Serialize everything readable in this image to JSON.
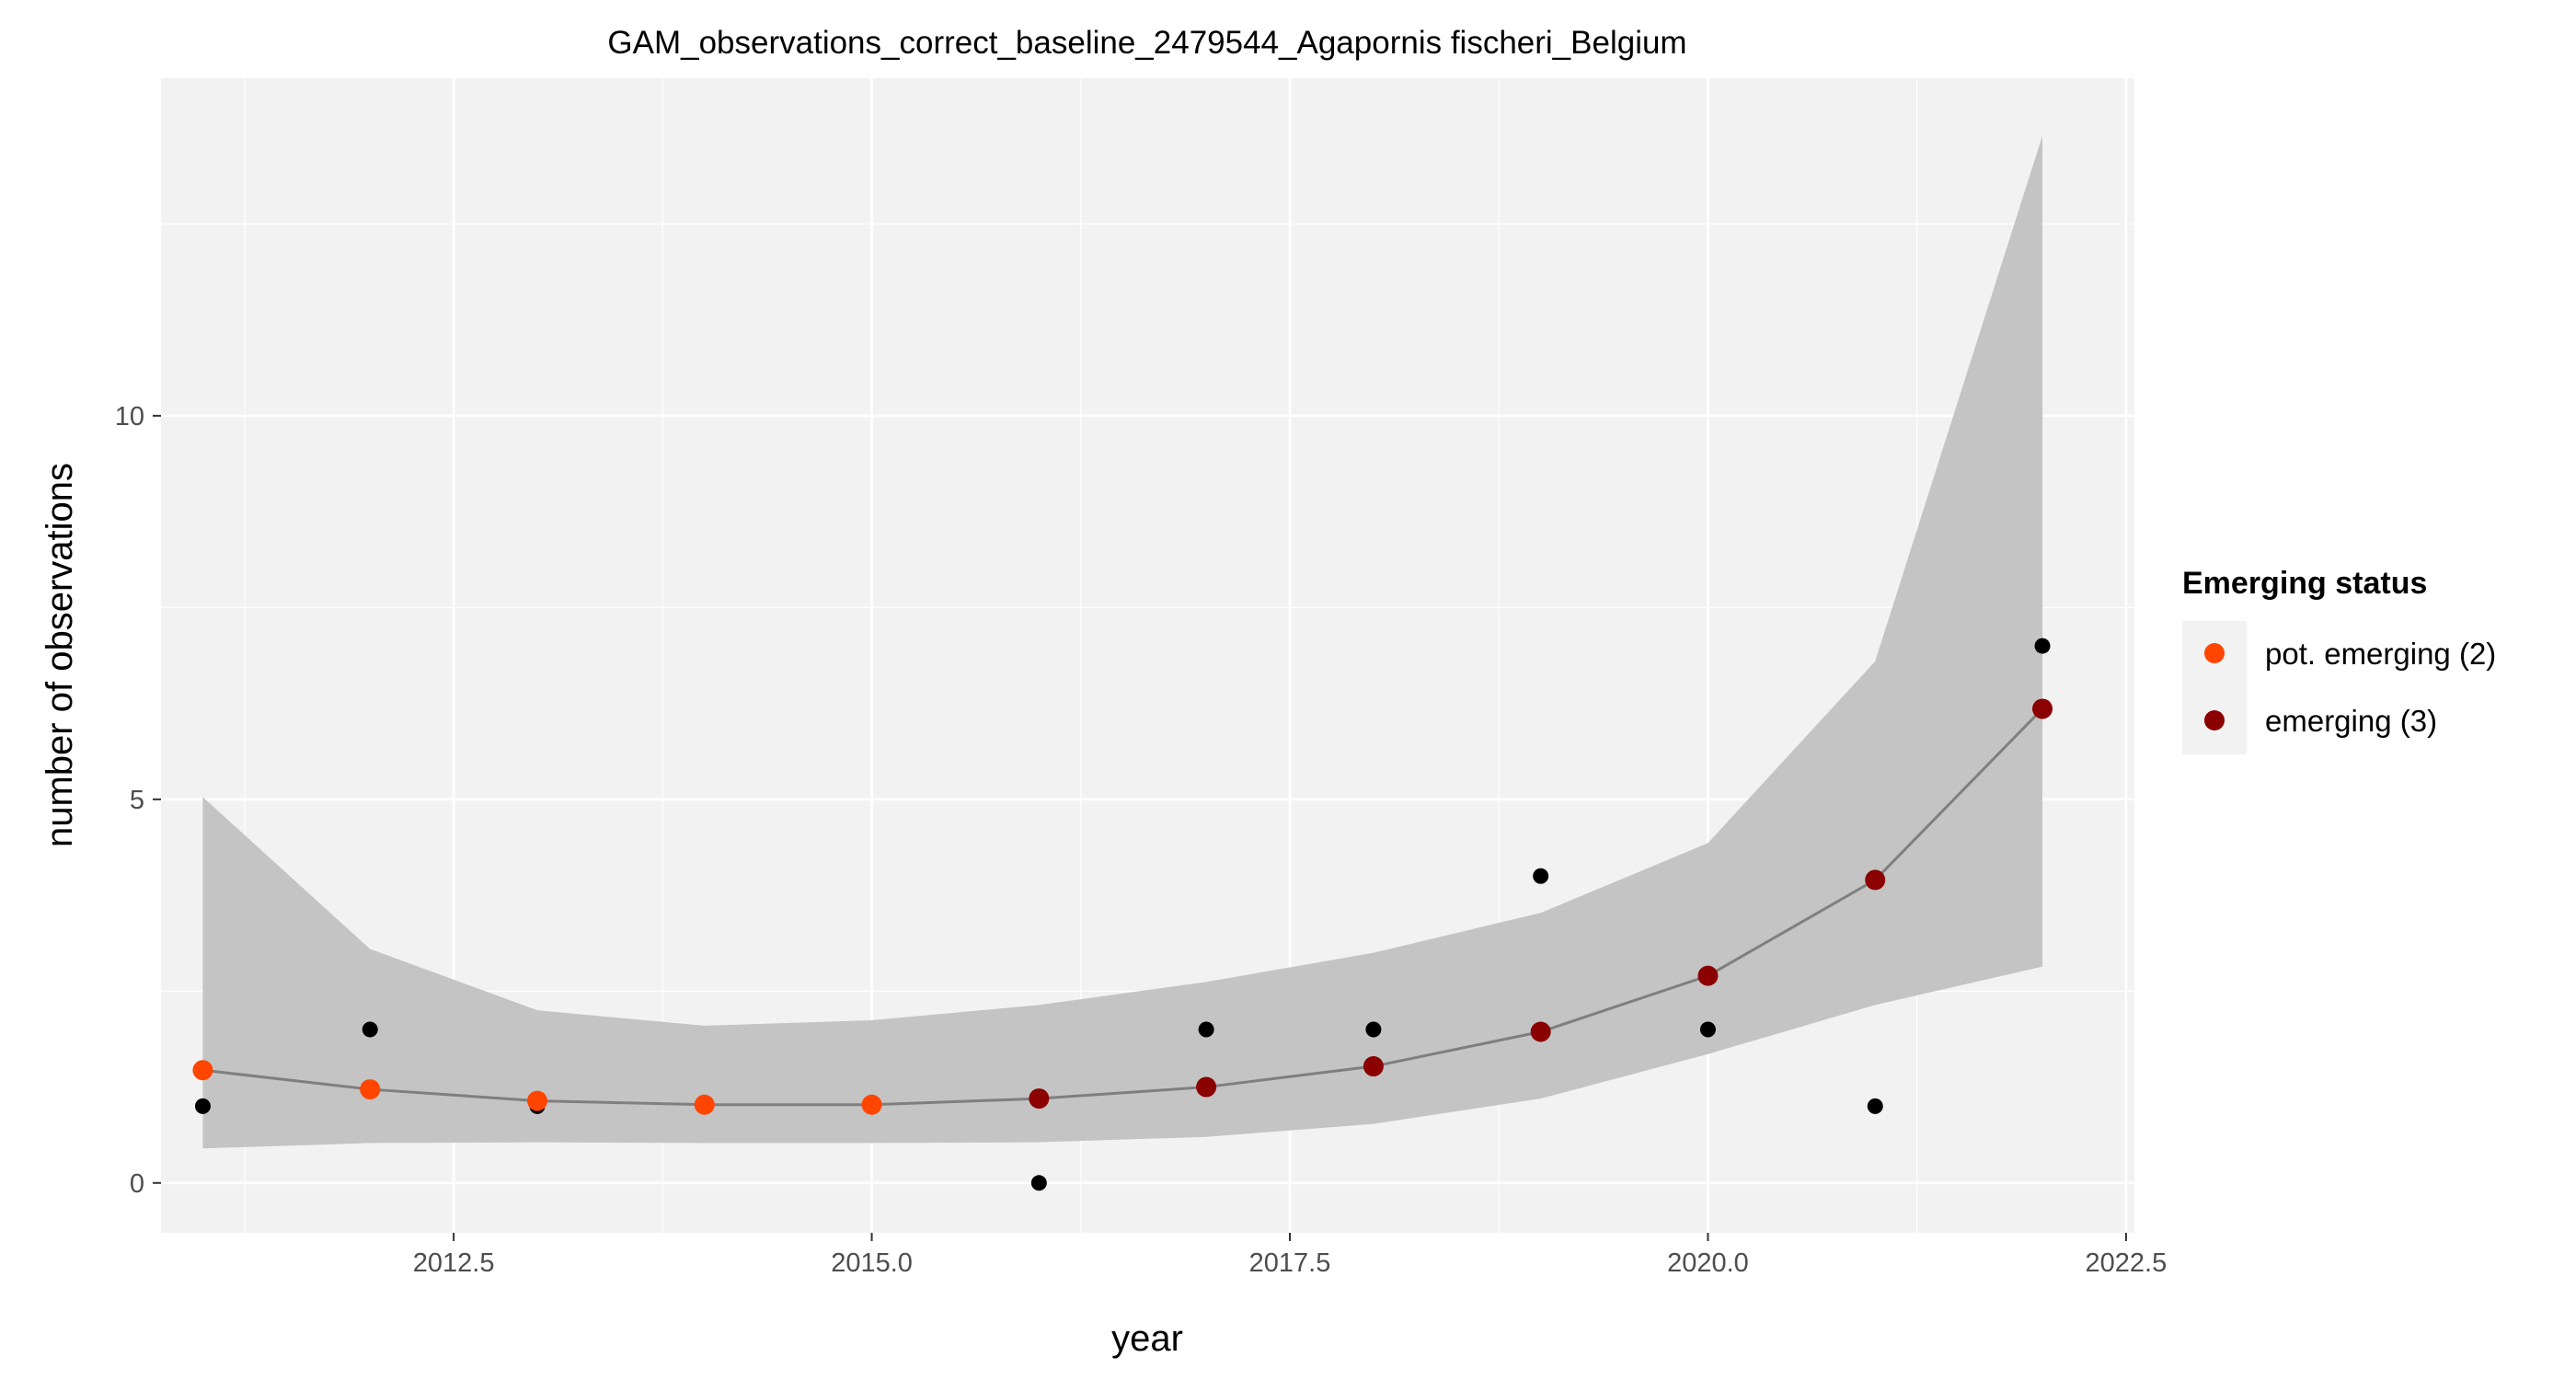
{
  "chart_data": {
    "type": "line",
    "title": "GAM_observations_correct_baseline_2479544_Agapornis fischeri_Belgium",
    "xlabel": "year",
    "ylabel": "number of observations",
    "xlim": [
      2010.75,
      2022.55
    ],
    "ylim": [
      -0.65,
      14.4
    ],
    "x_ticks": [
      2012.5,
      2015.0,
      2017.5,
      2020.0,
      2022.5
    ],
    "x_tick_labels": [
      "2012.5",
      "2015.0",
      "2017.5",
      "2020.0",
      "2022.5"
    ],
    "y_ticks": [
      0,
      5,
      10
    ],
    "y_tick_labels": [
      "0",
      "5",
      "10"
    ],
    "grid": true,
    "legend": {
      "title": "Emerging status",
      "position": "right",
      "entries": [
        {
          "label": "pot. emerging (2)",
          "color": "#FF4500"
        },
        {
          "label": "emerging (3)",
          "color": "#8B0000"
        }
      ]
    },
    "observed": {
      "x": [
        2011,
        2012,
        2013,
        2014,
        2015,
        2016,
        2017,
        2018,
        2019,
        2020,
        2021,
        2022
      ],
      "y": [
        1,
        2,
        1,
        1,
        1,
        0,
        2,
        2,
        4,
        2,
        1,
        7
      ]
    },
    "fit": {
      "x": [
        2011,
        2012,
        2013,
        2014,
        2015,
        2016,
        2017,
        2018,
        2019,
        2020,
        2021,
        2022
      ],
      "y": [
        1.47,
        1.22,
        1.07,
        1.02,
        1.02,
        1.1,
        1.25,
        1.52,
        1.97,
        2.7,
        3.95,
        6.18
      ],
      "status": [
        "pot. emerging (2)",
        "pot. emerging (2)",
        "pot. emerging (2)",
        "pot. emerging (2)",
        "pot. emerging (2)",
        "emerging (3)",
        "emerging (3)",
        "emerging (3)",
        "emerging (3)",
        "emerging (3)",
        "emerging (3)",
        "emerging (3)"
      ],
      "lower": [
        0.45,
        0.52,
        0.53,
        0.52,
        0.52,
        0.53,
        0.6,
        0.77,
        1.1,
        1.68,
        2.32,
        2.82
      ],
      "upper": [
        5.03,
        3.05,
        2.25,
        2.05,
        2.12,
        2.32,
        2.62,
        3.0,
        3.52,
        4.43,
        6.8,
        13.65
      ]
    },
    "colors": {
      "panel_background": "#F2F2F2",
      "grid": "#FFFFFF",
      "ribbon": "#C4C4C4",
      "fit_line": "#7F7F7F",
      "observed_point": "#000000",
      "pot_emerging": "#FF4500",
      "emerging": "#8B0000"
    }
  }
}
